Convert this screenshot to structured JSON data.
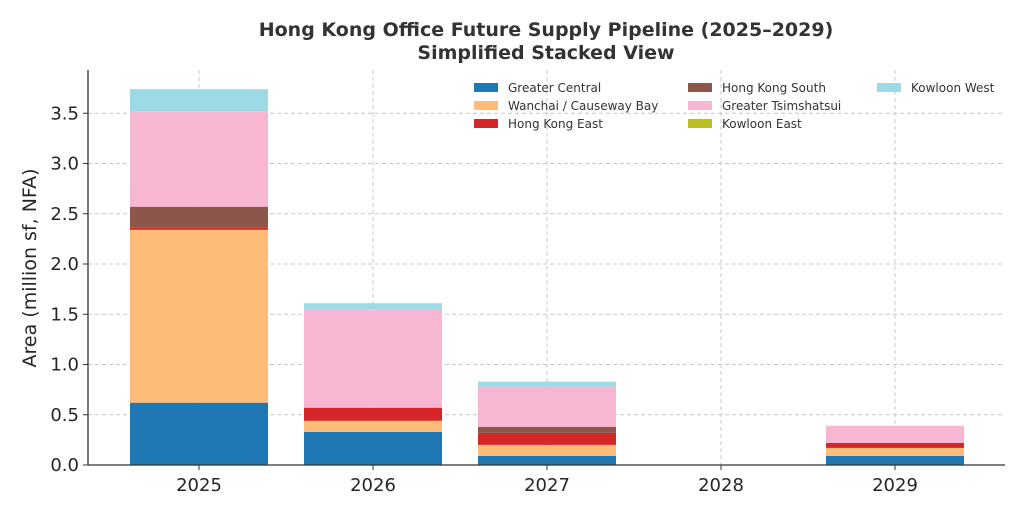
{
  "chart_data": {
    "type": "bar",
    "stacked": true,
    "title": "Hong Kong Office Future Supply Pipeline (2025–2029)",
    "subtitle": "Simplified Stacked View",
    "xlabel": "",
    "ylabel": "Area (million sf, NFA)",
    "categories": [
      "2025",
      "2026",
      "2027",
      "2028",
      "2029"
    ],
    "ylim": [
      0,
      3.9
    ],
    "yticks": [
      "0.0",
      "0.5",
      "1.0",
      "1.5",
      "2.0",
      "2.5",
      "3.0",
      "3.5"
    ],
    "grid": true,
    "legend_position": "top-right",
    "series": [
      {
        "name": "Greater Central",
        "color": "#1f77b4",
        "values": [
          0.62,
          0.33,
          0.09,
          0,
          0.09
        ]
      },
      {
        "name": "Wanchai / Causeway Bay",
        "color": "#ffbb78",
        "values": [
          1.72,
          0.11,
          0.11,
          0,
          0.08
        ]
      },
      {
        "name": "Hong Kong East",
        "color": "#d62728",
        "values": [
          0.02,
          0.13,
          0.12,
          0,
          0.05
        ]
      },
      {
        "name": "Hong Kong South",
        "color": "#8c564b",
        "values": [
          0.21,
          0,
          0.06,
          0,
          0
        ]
      },
      {
        "name": "Greater Tsimshatsui",
        "color": "#f7b6d2",
        "values": [
          0.95,
          0.98,
          0.4,
          0,
          0.17
        ]
      },
      {
        "name": "Kowloon East",
        "color": "#bcbd22",
        "values": [
          0,
          0,
          0,
          0,
          0
        ]
      },
      {
        "name": "Kowloon West",
        "color": "#9edae5",
        "values": [
          0.22,
          0.06,
          0.05,
          0,
          0
        ]
      }
    ]
  }
}
